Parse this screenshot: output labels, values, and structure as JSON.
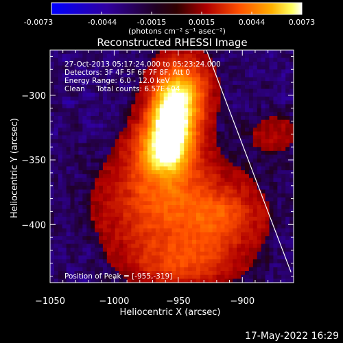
{
  "colorbar": {
    "ticks": [
      "-0.0073",
      "-0.0044",
      "-0.0015",
      "0.0015",
      "0.0044",
      "0.0073"
    ],
    "unit_label": "(photons cm⁻² s⁻¹ asec⁻²)"
  },
  "annotations": {
    "line1": "27-Oct-2013 05:17:24.000 to 05:23:24.000",
    "line2": "Detectors: 3F 4F 5F 6F 7F 8F, Att 0",
    "line3": "Energy Range: 6.0 - 12.0 keV",
    "line4": "Clean     Total counts: 6.57E+04",
    "peak": "Position of Peak = [-955,-319]"
  },
  "footer": {
    "timestamp": "17-May-2022 16:29"
  },
  "chart_data": {
    "type": "heatmap",
    "title": "Reconstructed RHESSI Image",
    "xlabel": "Heliocentric X (arcsec)",
    "ylabel": "Heliocentric Y (arcsec)",
    "xlim": [
      -1050,
      -860
    ],
    "ylim": [
      -445,
      -265
    ],
    "x_ticks": [
      -1050,
      -1000,
      -950,
      -900
    ],
    "y_ticks": [
      -300,
      -350,
      -400
    ],
    "x_tick_labels": [
      "−1050",
      "−1000",
      "−950",
      "−900"
    ],
    "y_tick_labels": [
      "−300",
      "−350",
      "−400"
    ],
    "color_range": [
      -0.0073,
      0.0073
    ],
    "peak": [
      -955,
      -319
    ],
    "peak_value": 0.0073,
    "limb": [
      [
        -928,
        -265
      ],
      [
        -862,
        -437
      ]
    ],
    "colors": [
      "#0000ff",
      "#300070",
      "#000000",
      "#b00000",
      "#ff6000",
      "#ffa000",
      "#ffff00",
      "#ffffff"
    ]
  }
}
